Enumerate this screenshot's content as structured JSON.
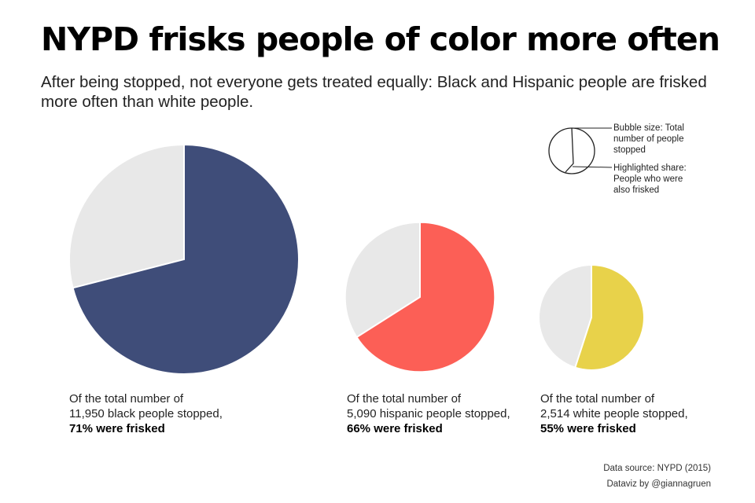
{
  "title": "NYPD frisks people of color more often",
  "subtitle": "After being stopped, not everyone gets treated equally: Black and Hispanic people are frisked more often than white people.",
  "legend": {
    "size_lines": [
      "Bubble size: Total",
      "number of people",
      "stopped"
    ],
    "share_lines": [
      "Highlighted share:",
      "People who were",
      "also frisked"
    ]
  },
  "captions": [
    {
      "line1": "Of the total number of",
      "line2": "11,950 black people stopped,",
      "line3": "71%  were frisked"
    },
    {
      "line1": "Of the total number of",
      "line2": "5,090 hispanic people stopped,",
      "line3": "66%  were frisked"
    },
    {
      "line1": "Of the total number of",
      "line2": "2,514 white people stopped,",
      "line3": "55%  were frisked"
    }
  ],
  "footer": {
    "source": "Data source: NYPD (2015)",
    "credit": "Dataviz by @giannagruen"
  },
  "chart_data": {
    "type": "pie",
    "title": "NYPD frisks people of color more often",
    "series": [
      {
        "name": "black",
        "total_stopped": 11950,
        "frisked_pct": 71,
        "color": "#3f4d79"
      },
      {
        "name": "hispanic",
        "total_stopped": 5090,
        "frisked_pct": 66,
        "color": "#fc5f56"
      },
      {
        "name": "white",
        "total_stopped": 2514,
        "frisked_pct": 55,
        "color": "#e8d24a"
      }
    ],
    "remainder_color": "#e8e8e8"
  }
}
